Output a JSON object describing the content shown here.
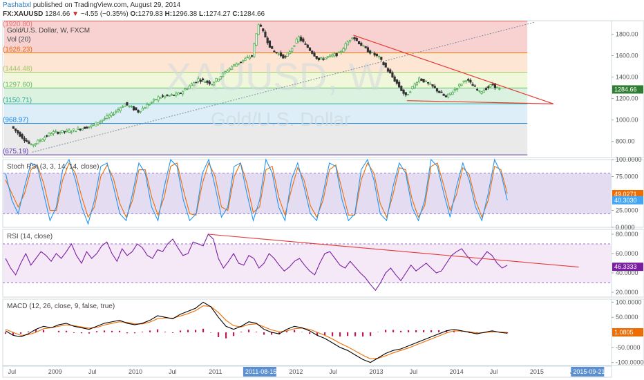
{
  "header": {
    "user": "Pashabxl",
    "published": "published on TradingView.com, August 29, 2014",
    "symbol": "FX:XAUUSD",
    "last": "1284.66",
    "change": "−4.55 (−0.35%)",
    "open_label": "O:",
    "open": "1279.83",
    "high_label": "H:",
    "high": "1296.38",
    "low_label": "L:",
    "low": "1274.27",
    "close_label": "C:",
    "close": "1284.66"
  },
  "colors": {
    "up_candle": "#4caf50",
    "down_candle": "#333333",
    "trendline": "#e53935",
    "stoch_k": "#2196f3",
    "stoch_d": "#ef6c00",
    "rsi": "#7b1fa2",
    "macd": "#000000",
    "signal": "#ef6c00",
    "histogram": "#c2185b",
    "fib_zones": [
      "#f7c9c9",
      "#fde2cc",
      "#eef6d4",
      "#d6f0dc",
      "#d8ebf7",
      "#e6e6e6"
    ],
    "fib_lines": [
      "#e57373",
      "#ef6c00",
      "#9ccc65",
      "#66bb6a",
      "#26a69a",
      "#1e88e5",
      "#5e35b1"
    ]
  },
  "chart_data": [
    {
      "type": "candlestick",
      "title": "Gold/U.S. Dollar, W, FXCM",
      "watermark_symbol": "XAUUSD, W",
      "watermark_name": "Gold/U.S. Dollar",
      "vol_label": "Vol (20)",
      "ylim": [
        650,
        1925
      ],
      "y_ticks": [
        "1800.00",
        "1600.00",
        "1400.00",
        "1200.00",
        "1000.00",
        "800.00"
      ],
      "y_tick_values": [
        1800,
        1600,
        1400,
        1200,
        1000,
        800
      ],
      "x_ticks": [
        "Jul",
        "2009",
        "Jul",
        "2010",
        "Jul",
        "2011",
        "2011-08-15",
        "2012",
        "Jul",
        "2013",
        "Jul",
        "2014",
        "Jul",
        "2015",
        "Jul",
        "2015-09-21"
      ],
      "fib_levels": [
        {
          "label": "1920.80",
          "value": 1920.8
        },
        {
          "label": "1626.23",
          "value": 1626.23
        },
        {
          "label": "1444.48",
          "value": 1444.48
        },
        {
          "label": "1297.60",
          "value": 1297.6
        },
        {
          "label": "1150.71",
          "value": 1150.71
        },
        {
          "label": "968.97",
          "value": 968.97
        },
        {
          "label": "675.19",
          "value": 675.19
        }
      ],
      "price_path": [
        [
          "2008-07",
          940
        ],
        [
          "2008-10",
          760
        ],
        [
          "2009-01",
          880
        ],
        [
          "2009-04",
          900
        ],
        [
          "2009-07",
          945
        ],
        [
          "2009-10",
          1050
        ],
        [
          "2009-12",
          1150
        ],
        [
          "2010-02",
          1080
        ],
        [
          "2010-05",
          1210
        ],
        [
          "2010-08",
          1240
        ],
        [
          "2010-11",
          1380
        ],
        [
          "2011-01",
          1340
        ],
        [
          "2011-04",
          1500
        ],
        [
          "2011-07",
          1600
        ],
        [
          "2011-08",
          1900
        ],
        [
          "2011-10",
          1650
        ],
        [
          "2011-12",
          1580
        ],
        [
          "2012-02",
          1770
        ],
        [
          "2012-05",
          1560
        ],
        [
          "2012-08",
          1620
        ],
        [
          "2012-10",
          1780
        ],
        [
          "2012-12",
          1660
        ],
        [
          "2013-02",
          1580
        ],
        [
          "2013-04",
          1400
        ],
        [
          "2013-06",
          1220
        ],
        [
          "2013-08",
          1390
        ],
        [
          "2013-10",
          1310
        ],
        [
          "2013-12",
          1210
        ],
        [
          "2014-03",
          1380
        ],
        [
          "2014-05",
          1260
        ],
        [
          "2014-07",
          1330
        ],
        [
          "2014-08",
          1284.66
        ]
      ],
      "last_price": "1284.66",
      "support_line": {
        "from": [
          "2013-06",
          1180
        ],
        "to": [
          "2015-01",
          1180
        ]
      },
      "resistance_line": {
        "from": [
          "2012-10",
          1790
        ],
        "to": [
          "2015-01",
          1180
        ]
      },
      "trend_line": {
        "from": [
          "2008-10",
          700
        ],
        "to": [
          "2015-01",
          1910
        ]
      }
    },
    {
      "type": "line",
      "title": "Stoch RSI (3, 3, 14, 14, close)",
      "ylim": [
        0,
        100
      ],
      "y_ticks": [
        "100.0000",
        "75.0000",
        "25.0000",
        "0.0000"
      ],
      "y_tick_values": [
        100,
        75,
        25,
        0
      ],
      "bands": [
        80,
        20
      ],
      "series": [
        {
          "values": [
            80,
            40,
            20,
            60,
            95,
            90,
            50,
            10,
            30,
            85,
            100,
            70,
            30,
            5,
            40,
            90,
            95,
            60,
            20,
            10,
            50,
            95,
            80,
            30,
            10,
            60,
            100,
            90,
            40,
            10,
            20,
            80,
            100,
            60,
            15,
            30,
            90,
            95,
            50,
            10,
            40,
            100,
            80,
            30,
            10,
            70,
            95,
            60,
            20,
            10,
            50,
            95,
            90,
            40,
            10,
            20,
            85,
            100,
            70,
            20,
            10,
            60,
            95,
            80,
            30,
            10,
            40,
            100,
            90,
            50,
            15,
            60,
            95,
            70,
            30,
            10,
            50,
            100,
            80,
            40
          ]
        },
        {
          "values": [
            70,
            50,
            30,
            50,
            85,
            92,
            65,
            25,
            25,
            70,
            95,
            80,
            45,
            15,
            30,
            75,
            92,
            72,
            35,
            15,
            40,
            85,
            85,
            45,
            18,
            45,
            90,
            95,
            55,
            20,
            18,
            65,
            95,
            75,
            30,
            25,
            75,
            95,
            65,
            22,
            30,
            85,
            90,
            45,
            18,
            55,
            88,
            70,
            32,
            15,
            40,
            85,
            92,
            55,
            18,
            18,
            70,
            95,
            80,
            35,
            15,
            48,
            88,
            85,
            42,
            15,
            32,
            90,
            95,
            62,
            25,
            48,
            88,
            78,
            40,
            15,
            40,
            90,
            85,
            50
          ]
        }
      ],
      "last_value": "49.0271",
      "last_value_2": "40.3030"
    },
    {
      "type": "line",
      "title": "RSI (14, close)",
      "ylim": [
        15,
        85
      ],
      "y_ticks": [
        "80.0000",
        "60.0000",
        "40.0000",
        "20.0000"
      ],
      "y_tick_values": [
        80,
        60,
        40,
        20
      ],
      "bands": [
        70,
        30
      ],
      "series": [
        {
          "values": [
            55,
            45,
            38,
            50,
            60,
            48,
            55,
            62,
            58,
            52,
            60,
            55,
            62,
            70,
            58,
            50,
            62,
            55,
            60,
            68,
            72,
            60,
            52,
            65,
            58,
            62,
            70,
            66,
            58,
            55,
            64,
            62,
            70,
            75,
            66,
            58,
            60,
            72,
            70,
            68,
            80,
            75,
            55,
            45,
            52,
            60,
            50,
            48,
            58,
            55,
            45,
            50,
            60,
            55,
            48,
            42,
            46,
            52,
            55,
            48,
            42,
            38,
            50,
            60,
            62,
            55,
            48,
            45,
            52,
            46,
            40,
            35,
            28,
            22,
            30,
            40,
            45,
            38,
            32,
            40,
            48,
            42,
            46,
            50,
            45,
            40,
            42,
            50,
            58,
            62,
            65,
            58,
            52,
            48,
            55,
            62,
            58,
            50,
            45,
            48
          ]
        }
      ],
      "last_value": "46.3333",
      "trend_line": {
        "from_index": 40,
        "from_value": 80,
        "to_index": 99,
        "to_value": 52
      }
    },
    {
      "type": "line",
      "title": "MACD (12, 26, close, 9, false, true)",
      "ylim": [
        -110,
        110
      ],
      "y_ticks": [
        "100.0000",
        "50.0000",
        "-50.0000",
        "-100.0000"
      ],
      "y_tick_values": [
        100,
        50,
        -50,
        -100
      ],
      "series": [
        {
          "name": "",
          "values": [
            5,
            -10,
            -15,
            -5,
            10,
            20,
            15,
            25,
            30,
            20,
            15,
            10,
            20,
            30,
            35,
            40,
            30,
            25,
            30,
            40,
            55,
            50,
            45,
            60,
            70,
            80,
            100,
            85,
            50,
            20,
            10,
            20,
            35,
            30,
            10,
            0,
            -5,
            10,
            20,
            15,
            5,
            -10,
            -20,
            -35,
            -50,
            -60,
            -75,
            -90,
            -100,
            -85,
            -70,
            -60,
            -55,
            -45,
            -35,
            -25,
            -15,
            -5,
            5,
            10,
            5,
            0,
            -5,
            0,
            5,
            0,
            -3
          ]
        },
        {
          "name": "",
          "values": [
            10,
            0,
            -10,
            -8,
            0,
            12,
            15,
            20,
            25,
            22,
            18,
            14,
            16,
            24,
            30,
            35,
            33,
            28,
            28,
            34,
            45,
            48,
            47,
            54,
            62,
            72,
            88,
            86,
            66,
            40,
            22,
            18,
            26,
            28,
            18,
            8,
            2,
            5,
            12,
            14,
            10,
            0,
            -10,
            -22,
            -36,
            -48,
            -62,
            -76,
            -88,
            -86,
            -78,
            -68,
            -60,
            -52,
            -42,
            -32,
            -22,
            -12,
            -2,
            5,
            4,
            2,
            -2,
            -1,
            2,
            1,
            0
          ]
        }
      ],
      "histogram": [
        -5,
        -10,
        -5,
        3,
        10,
        8,
        0,
        5,
        5,
        -2,
        -3,
        -4,
        4,
        6,
        5,
        5,
        -3,
        -3,
        2,
        6,
        10,
        2,
        -2,
        6,
        8,
        8,
        12,
        -1,
        -16,
        -20,
        -12,
        2,
        9,
        2,
        -8,
        -8,
        -7,
        5,
        8,
        1,
        -5,
        -10,
        -10,
        -13,
        -14,
        -12,
        -13,
        -14,
        -12,
        1,
        8,
        8,
        5,
        7,
        7,
        7,
        7,
        7,
        7,
        5,
        1,
        -2,
        -3,
        1,
        3,
        -1,
        -3
      ],
      "last_value": "1.0805"
    }
  ]
}
